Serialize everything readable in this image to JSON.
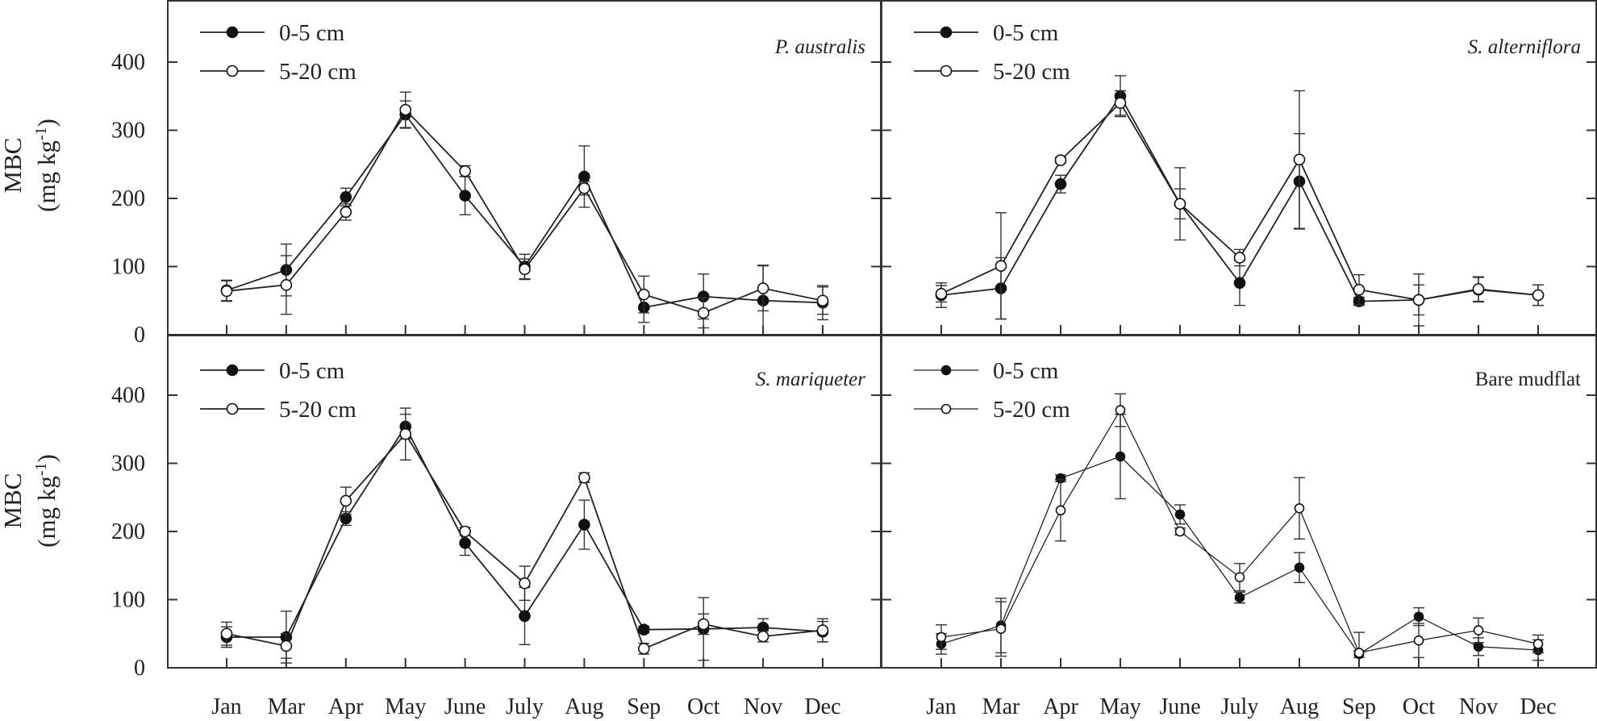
{
  "chart_data": [
    {
      "type": "line",
      "title": "P. australis",
      "title_italic": true,
      "ylabel": "MBC",
      "yunit": {
        "pre": "(mg kg",
        "sup": "-1",
        "post": ")"
      },
      "ylim": [
        0,
        400
      ],
      "yticks": [
        "0",
        "100",
        "200",
        "300",
        "400"
      ],
      "categories": [
        "Jan",
        "Mar",
        "Apr",
        "May",
        "June",
        "July",
        "Aug",
        "Sep",
        "Oct",
        "Nov",
        "Dec"
      ],
      "legend_position": "top-left",
      "series": [
        {
          "name": "0-5 cm",
          "marker": "filled-circle",
          "values": [
            65,
            95,
            202,
            323,
            204,
            100,
            232,
            40,
            56,
            50,
            47
          ],
          "errors": [
            15,
            38,
            13,
            20,
            28,
            18,
            45,
            22,
            33,
            52,
            25
          ]
        },
        {
          "name": "5-20 cm",
          "marker": "open-circle",
          "values": [
            64,
            73,
            180,
            330,
            240,
            96,
            215,
            59,
            32,
            68,
            50
          ],
          "errors": [
            15,
            43,
            12,
            26,
            8,
            15,
            10,
            27,
            22,
            33,
            20
          ]
        }
      ]
    },
    {
      "type": "line",
      "title": "S. alterniflora",
      "title_italic": true,
      "ylabel": "",
      "ylim": [
        0,
        400
      ],
      "yticks": [],
      "categories": [
        "Jan",
        "Mar",
        "Apr",
        "May",
        "June",
        "July",
        "Aug",
        "Sep",
        "Oct",
        "Nov",
        "Dec"
      ],
      "legend_position": "top-left",
      "series": [
        {
          "name": "0-5 cm",
          "marker": "filled-circle",
          "values": [
            58,
            68,
            221,
            350,
            192,
            76,
            225,
            49,
            51,
            66,
            58
          ],
          "errors": [
            18,
            45,
            13,
            30,
            53,
            33,
            70,
            6,
            38,
            18,
            15
          ]
        },
        {
          "name": "5-20 cm",
          "marker": "open-circle",
          "values": [
            60,
            101,
            256,
            340,
            192,
            113,
            257,
            66,
            51,
            67,
            58
          ],
          "errors": [
            12,
            78,
            4,
            18,
            22,
            12,
            101,
            22,
            22,
            18,
            15
          ]
        }
      ]
    },
    {
      "type": "line",
      "title": "S. mariqueter",
      "title_italic": true,
      "ylabel": "MBC",
      "yunit": {
        "pre": "(mg kg",
        "sup": "-1",
        "post": ")"
      },
      "ylim": [
        0,
        400
      ],
      "yticks": [
        "0",
        "100",
        "200",
        "300",
        "400"
      ],
      "categories": [
        "Jan",
        "Mar",
        "Apr",
        "May",
        "June",
        "July",
        "Aug",
        "Sep",
        "Oct",
        "Nov",
        "Dec"
      ],
      "legend_position": "top-left",
      "series": [
        {
          "name": "0-5 cm",
          "marker": "filled-circle",
          "values": [
            45,
            45,
            219,
            354,
            183,
            76,
            210,
            56,
            57,
            59,
            53
          ],
          "errors": [
            15,
            38,
            10,
            18,
            18,
            42,
            36,
            5,
            46,
            13,
            15
          ]
        },
        {
          "name": "5-20 cm",
          "marker": "open-circle",
          "values": [
            50,
            32,
            245,
            343,
            200,
            124,
            279,
            28,
            64,
            46,
            55
          ],
          "errors": [
            17,
            18,
            20,
            38,
            6,
            25,
            7,
            8,
            15,
            8,
            17
          ]
        }
      ]
    },
    {
      "type": "line",
      "title": "Bare mudflat",
      "title_italic": false,
      "ylabel": "",
      "ylim": [
        0,
        400
      ],
      "yticks": [],
      "categories": [
        "Jan",
        "Mar",
        "Apr",
        "May",
        "June",
        "July",
        "Aug",
        "Sep",
        "Oct",
        "Nov",
        "Dec"
      ],
      "legend_position": "top-left",
      "series": [
        {
          "name": "0-5 cm",
          "marker": "filled-circle",
          "values": [
            35,
            62,
            278,
            310,
            225,
            103,
            147,
            20,
            75,
            31,
            26
          ],
          "errors": [
            15,
            40,
            5,
            62,
            14,
            8,
            22,
            5,
            13,
            13,
            15
          ]
        },
        {
          "name": "5-20 cm",
          "marker": "open-circle",
          "values": [
            45,
            57,
            231,
            378,
            200,
            133,
            234,
            22,
            40,
            55,
            35
          ],
          "errors": [
            18,
            40,
            45,
            24,
            5,
            20,
            45,
            30,
            25,
            18,
            13
          ]
        }
      ]
    }
  ]
}
